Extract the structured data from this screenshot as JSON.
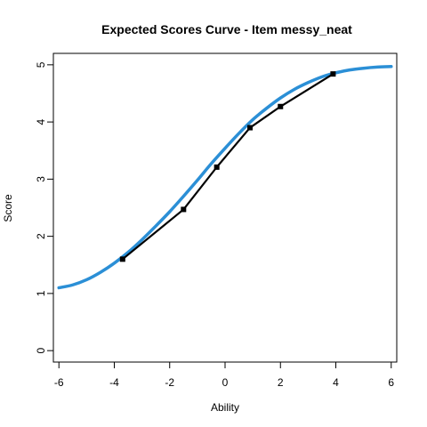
{
  "chart_data": {
    "type": "line",
    "title": "Expected Scores Curve - Item  messy_neat",
    "xlabel": "Ability",
    "ylabel": "Score",
    "xlim": [
      -6.2,
      6.2
    ],
    "ylim": [
      -0.2,
      5.2
    ],
    "xticks": [
      -6,
      -4,
      -2,
      0,
      2,
      4,
      6
    ],
    "yticks": [
      0,
      1,
      2,
      3,
      4,
      5
    ],
    "grid": false,
    "series": [
      {
        "color": "#2b8fd6",
        "style": "smooth-curve",
        "x": [
          -6.0,
          -5.5,
          -5.0,
          -4.5,
          -4.0,
          -3.5,
          -3.0,
          -2.5,
          -2.0,
          -1.5,
          -1.0,
          -0.5,
          0.0,
          0.5,
          1.0,
          1.5,
          2.0,
          2.5,
          3.0,
          3.5,
          4.0,
          4.5,
          5.0,
          5.5,
          6.0
        ],
        "y": [
          1.1,
          1.15,
          1.24,
          1.37,
          1.53,
          1.72,
          1.94,
          2.18,
          2.43,
          2.7,
          2.98,
          3.27,
          3.54,
          3.8,
          4.04,
          4.24,
          4.42,
          4.57,
          4.69,
          4.79,
          4.86,
          4.91,
          4.94,
          4.96,
          4.97
        ]
      },
      {
        "color": "#000000",
        "style": "line-with-markers",
        "x": [
          -3.7,
          -1.5,
          -0.3,
          0.9,
          2.0,
          3.9
        ],
        "y": [
          1.6,
          2.47,
          3.21,
          3.9,
          4.27,
          4.84
        ]
      }
    ]
  }
}
